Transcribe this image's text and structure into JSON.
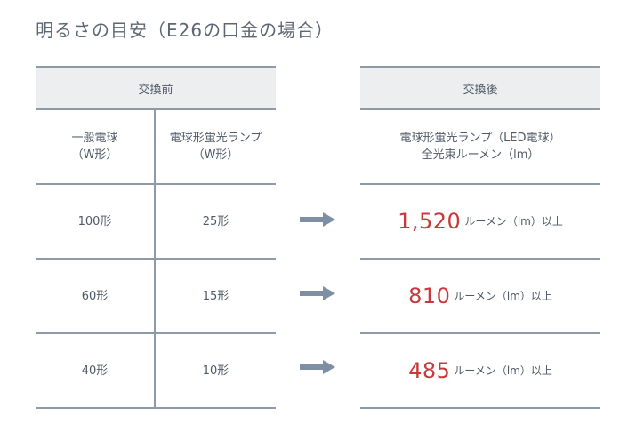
{
  "title": "明るさの目安（E26の口金の場合）",
  "before": {
    "header": "交換前",
    "columns": [
      "一般電球\n（W形）",
      "電球形蛍光ランプ\n（W形）"
    ],
    "column_lines": [
      [
        "一般電球",
        "（W形）"
      ],
      [
        "電球形蛍光ランプ",
        "（W形）"
      ]
    ],
    "rows": [
      [
        "100形",
        "25形"
      ],
      [
        "60形",
        "15形"
      ],
      [
        "40形",
        "10形"
      ]
    ]
  },
  "after": {
    "header": "交換後",
    "column_lines": [
      "電球形蛍光ランプ（LED電球）",
      "全光束ルーメン（lm）"
    ],
    "rows": [
      {
        "value": "1,520",
        "unit": "ルーメン（lm）以上"
      },
      {
        "value": "810",
        "unit": "ルーメン（lm）以上"
      },
      {
        "value": "485",
        "unit": "ルーメン（lm）以上"
      }
    ]
  },
  "icons": {
    "row_arrow": "arrow-right-icon"
  },
  "colors": {
    "accent": "#c9393b",
    "line": "#8d9aa8",
    "header_bg": "#eceef0",
    "arrow": "#7f8fa3"
  }
}
